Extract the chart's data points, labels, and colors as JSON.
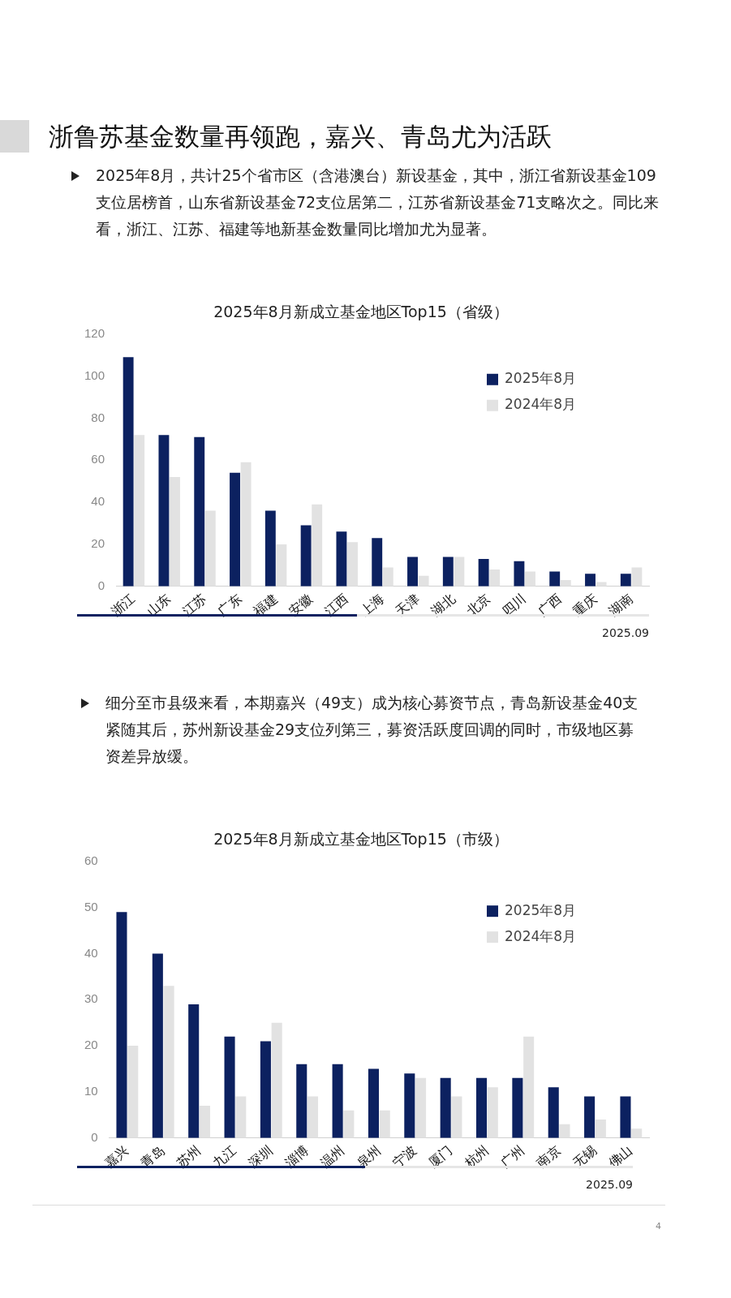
{
  "chart_data": [
    {
      "type": "bar",
      "title": "2025年8月新成立基金地区Top15（省级）",
      "categories": [
        "浙江",
        "山东",
        "江苏",
        "广东",
        "福建",
        "安徽",
        "江西",
        "上海",
        "天津",
        "湖北",
        "北京",
        "四川",
        "广西",
        "重庆",
        "湖南"
      ],
      "series": [
        {
          "name": "2025年8月",
          "color": "#0c2160",
          "values": [
            109,
            72,
            71,
            54,
            36,
            29,
            26,
            23,
            14,
            14,
            13,
            12,
            7,
            6,
            6
          ]
        },
        {
          "name": "2024年8月",
          "color": "#e2e2e2",
          "values": [
            72,
            52,
            36,
            59,
            20,
            39,
            21,
            9,
            5,
            14,
            8,
            7,
            3,
            2,
            9
          ]
        }
      ],
      "ylim": [
        0,
        120
      ],
      "yticks": [
        0,
        20,
        40,
        60,
        80,
        100,
        120
      ],
      "grid": false,
      "legend": "top right",
      "annotations": [
        "浙鲁苏基金数量再领跑，嘉兴、青岛尤为活跃",
        "2025年8月，共计25个省市区（含港澳台）新设基金，其中，浙江省新设基金109支位居榜首，山东省新设基金72支位居第二，江苏省新设基金71支略次之。同比来看，浙江、江苏、福建等地新基金数量同比增加尤为显著。",
        "2025.09"
      ]
    },
    {
      "type": "bar",
      "title": "2025年8月新成立基金地区Top15（市级）",
      "categories": [
        "嘉兴",
        "青岛",
        "苏州",
        "九江",
        "深圳",
        "淄博",
        "温州",
        "泉州",
        "宁波",
        "厦门",
        "杭州",
        "广州",
        "南京",
        "无锡",
        "佛山"
      ],
      "series": [
        {
          "name": "2025年8月",
          "color": "#0c2160",
          "values": [
            49,
            40,
            29,
            22,
            21,
            16,
            16,
            15,
            14,
            13,
            13,
            13,
            11,
            9,
            9
          ]
        },
        {
          "name": "2024年8月",
          "color": "#e2e2e2",
          "values": [
            20,
            33,
            7,
            9,
            25,
            9,
            6,
            6,
            13,
            9,
            11,
            22,
            3,
            4,
            2
          ]
        }
      ],
      "ylim": [
        0,
        60
      ],
      "yticks": [
        0,
        10,
        20,
        30,
        40,
        50,
        60
      ],
      "grid": false,
      "legend": "top right",
      "annotations": [
        "细分至市县级来看，本期嘉兴（49支）成为核心募资节点，青岛新设基金40支紧随其后，苏州新设基金29支位列第三，募资活跃度回调的同时，市级地区募资差异放缓。",
        "2025.09",
        "4"
      ]
    }
  ]
}
